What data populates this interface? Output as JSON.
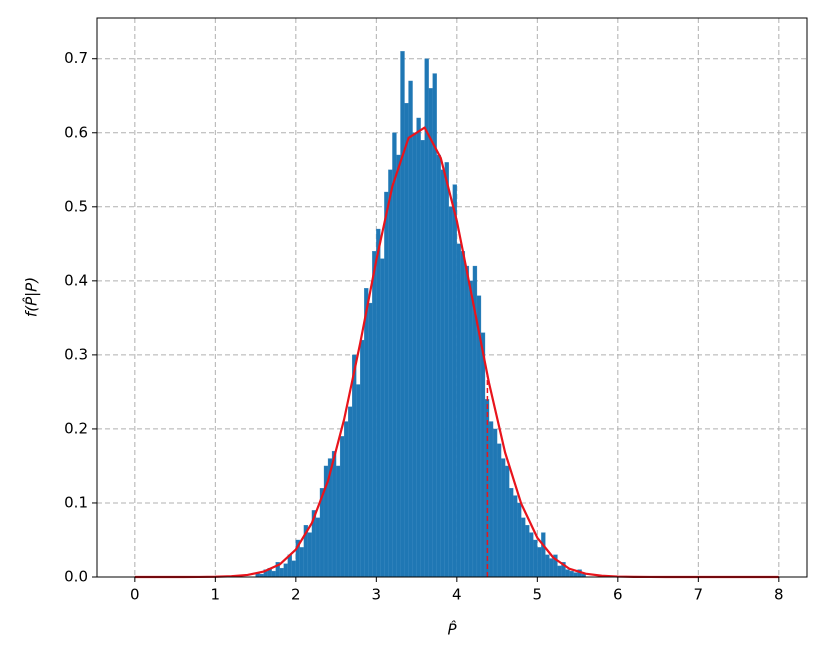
{
  "chart_data": {
    "type": "histogram",
    "xlabel": "P̂",
    "ylabel": "f(P̂|P)",
    "color": "#1f77b4",
    "bins": [
      1.5,
      1.55,
      1.6,
      1.65,
      1.7,
      1.75,
      1.8,
      1.85,
      1.9,
      1.95,
      2.0,
      2.05,
      2.1,
      2.15,
      2.2,
      2.25,
      2.3,
      2.35,
      2.4,
      2.45,
      2.5,
      2.55,
      2.6,
      2.65,
      2.7,
      2.75,
      2.8,
      2.85,
      2.9,
      2.95,
      3.0,
      3.05,
      3.1,
      3.15,
      3.2,
      3.25,
      3.3,
      3.35,
      3.4,
      3.45,
      3.5,
      3.55,
      3.6,
      3.65,
      3.7,
      3.75,
      3.8,
      3.85,
      3.9,
      3.95,
      4.0,
      4.05,
      4.1,
      4.15,
      4.2,
      4.25,
      4.3,
      4.35,
      4.4,
      4.45,
      4.5,
      4.55,
      4.6,
      4.65,
      4.7,
      4.75,
      4.8,
      4.85,
      4.9,
      4.95,
      5.0,
      5.05,
      5.1,
      5.15,
      5.2,
      5.25,
      5.3,
      5.35,
      5.4,
      5.45,
      5.5,
      5.55,
      5.6
    ],
    "values": [
      0.005,
      0.004,
      0.01,
      0.012,
      0.008,
      0.02,
      0.012,
      0.018,
      0.03,
      0.022,
      0.05,
      0.04,
      0.07,
      0.06,
      0.09,
      0.08,
      0.12,
      0.15,
      0.16,
      0.17,
      0.15,
      0.19,
      0.21,
      0.23,
      0.3,
      0.26,
      0.32,
      0.39,
      0.37,
      0.44,
      0.47,
      0.43,
      0.52,
      0.55,
      0.6,
      0.57,
      0.71,
      0.64,
      0.67,
      0.6,
      0.62,
      0.59,
      0.7,
      0.66,
      0.68,
      0.57,
      0.55,
      0.56,
      0.5,
      0.53,
      0.45,
      0.44,
      0.42,
      0.4,
      0.42,
      0.38,
      0.33,
      0.24,
      0.21,
      0.2,
      0.18,
      0.16,
      0.15,
      0.12,
      0.11,
      0.1,
      0.08,
      0.07,
      0.06,
      0.05,
      0.04,
      0.06,
      0.03,
      0.025,
      0.03,
      0.015,
      0.02,
      0.01,
      0.008,
      0.006,
      0.01,
      0.004
    ],
    "curve": {
      "type": "line",
      "color": "#e8141c",
      "x": [
        0,
        0.2,
        0.4,
        0.6,
        0.8,
        1.0,
        1.2,
        1.4,
        1.6,
        1.8,
        2.0,
        2.2,
        2.4,
        2.6,
        2.8,
        3.0,
        3.2,
        3.4,
        3.6,
        3.8,
        4.0,
        4.2,
        4.4,
        4.6,
        4.8,
        5.0,
        5.2,
        5.4,
        5.6,
        5.8,
        6.0,
        6.2,
        6.4,
        6.6,
        6.8,
        7.0,
        7.2,
        7.4,
        7.6,
        7.8,
        8.0
      ],
      "values": [
        0,
        0,
        0,
        0,
        0.0001,
        0.0003,
        0.001,
        0.0028,
        0.0073,
        0.017,
        0.037,
        0.073,
        0.13,
        0.213,
        0.316,
        0.428,
        0.528,
        0.593,
        0.607,
        0.566,
        0.481,
        0.372,
        0.262,
        0.168,
        0.099,
        0.053,
        0.026,
        0.011,
        0.0045,
        0.0017,
        0.0006,
        0.0002,
        0.0001,
        0,
        0,
        0,
        0,
        0,
        0,
        0,
        0
      ]
    },
    "vline": {
      "x": 4.38,
      "y": 0.273,
      "color": "#e8141c"
    },
    "xlim": [
      -0.47,
      8.35
    ],
    "ylim": [
      0,
      0.755
    ],
    "xticks": [
      0,
      1,
      2,
      3,
      4,
      5,
      6,
      7,
      8
    ],
    "yticks": [
      {
        "value": 0,
        "label": "0.0"
      },
      0.1,
      0.2,
      0.3,
      0.4,
      0.5,
      0.6,
      0.7
    ],
    "grid": true
  }
}
